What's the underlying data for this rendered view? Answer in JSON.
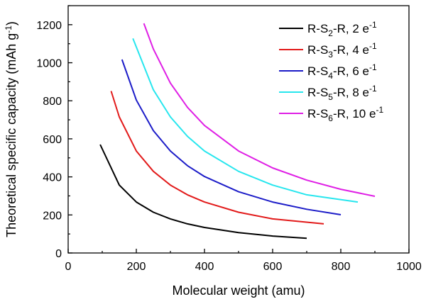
{
  "chart_data": {
    "type": "line",
    "xlabel": "Molecular weight (amu)",
    "ylabel": "Theoretical specific capacity (mAh g",
    "ylabel_sup": "-1",
    "ylabel_tail": ")",
    "xlim": [
      0,
      1000
    ],
    "ylim": [
      0,
      1300
    ],
    "x_ticks": [
      0,
      200,
      400,
      600,
      800,
      1000
    ],
    "y_ticks": [
      0,
      200,
      400,
      600,
      800,
      1000,
      1200
    ],
    "grid": false,
    "legend_position": "top-right",
    "series": [
      {
        "name": "R-S2-R, 2 e-1",
        "legend": {
          "a": "R-S",
          "sub": "2",
          "b": "-R, 2 e",
          "sup": "-1"
        },
        "color": "#000000",
        "x": [
          94,
          150,
          200,
          250,
          300,
          350,
          400,
          500,
          600,
          700
        ],
        "y": [
          570,
          357,
          268,
          214,
          179,
          153,
          134,
          107,
          89,
          77
        ]
      },
      {
        "name": "R-S3-R, 4 e-1",
        "legend": {
          "a": "R-S",
          "sub": "3",
          "b": "-R, 4 e",
          "sup": "-1"
        },
        "color": "#e21a1a",
        "x": [
          126,
          150,
          200,
          250,
          300,
          350,
          400,
          500,
          600,
          750
        ],
        "y": [
          851,
          715,
          536,
          429,
          357,
          306,
          268,
          214,
          179,
          153
        ]
      },
      {
        "name": "R-S4-R, 6 e-1",
        "legend": {
          "a": "R-S",
          "sub": "4",
          "b": "-R, 6 e",
          "sup": "-1"
        },
        "color": "#1c1cc8",
        "x": [
          158,
          200,
          250,
          300,
          350,
          400,
          500,
          600,
          700,
          800
        ],
        "y": [
          1017,
          804,
          643,
          536,
          459,
          402,
          322,
          268,
          230,
          201
        ]
      },
      {
        "name": "R-S5-R, 8 e-1",
        "legend": {
          "a": "R-S",
          "sub": "5",
          "b": "-R, 8 e",
          "sup": "-1"
        },
        "color": "#27e6ee",
        "x": [
          190,
          250,
          300,
          350,
          400,
          500,
          600,
          700,
          850
        ],
        "y": [
          1128,
          858,
          715,
          613,
          536,
          429,
          357,
          306,
          268
        ]
      },
      {
        "name": "R-S6-R, 10 e-1",
        "legend": {
          "a": "R-S",
          "sub": "6",
          "b": "-R, 10 e",
          "sup": "-1"
        },
        "color": "#df1fe5",
        "x": [
          222,
          250,
          300,
          350,
          400,
          500,
          600,
          700,
          800,
          900
        ],
        "y": [
          1207,
          1072,
          893,
          766,
          670,
          536,
          447,
          383,
          335,
          298
        ]
      }
    ]
  }
}
